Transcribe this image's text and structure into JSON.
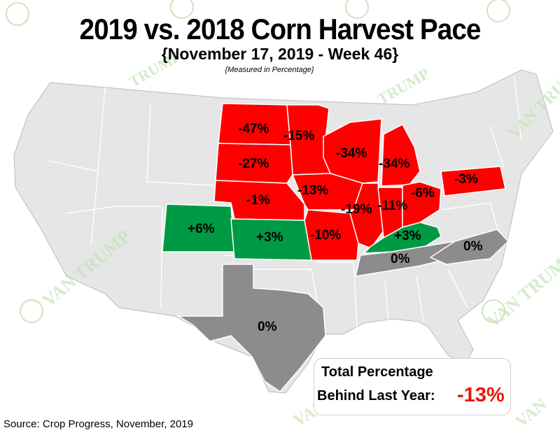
{
  "title": "2019 vs. 2018 Corn Harvest Pace",
  "subtitle": "{November 17, 2019 - Week 46}",
  "measured_note": "{Measured in Percentage}",
  "source": "Source: Crop Progress, November, 2019",
  "total": {
    "line1": "Total Percentage",
    "line2": "Behind Last Year:",
    "value": "-13%"
  },
  "colors": {
    "behind": "#ff0000",
    "ahead": "#009944",
    "even": "#8c8c8c",
    "base": "#e6e6e6",
    "border": "#ffffff"
  },
  "legend_values": {
    "north_dakota": "-47%",
    "minnesota": "-15%",
    "south_dakota": "-27%",
    "wisconsin": "-34%",
    "michigan": "-34%",
    "nebraska": "-1%",
    "iowa": "-13%",
    "illinois": "-19%",
    "indiana": "-11%",
    "ohio": "-6%",
    "pennsylvania": "-3%",
    "missouri": "-10%",
    "colorado": "+6%",
    "kansas": "+3%",
    "kentucky": "+3%",
    "tennessee": "0%",
    "north_carolina": "0%",
    "texas": "0%"
  },
  "watermark": "The VAN TRUMP Report"
}
